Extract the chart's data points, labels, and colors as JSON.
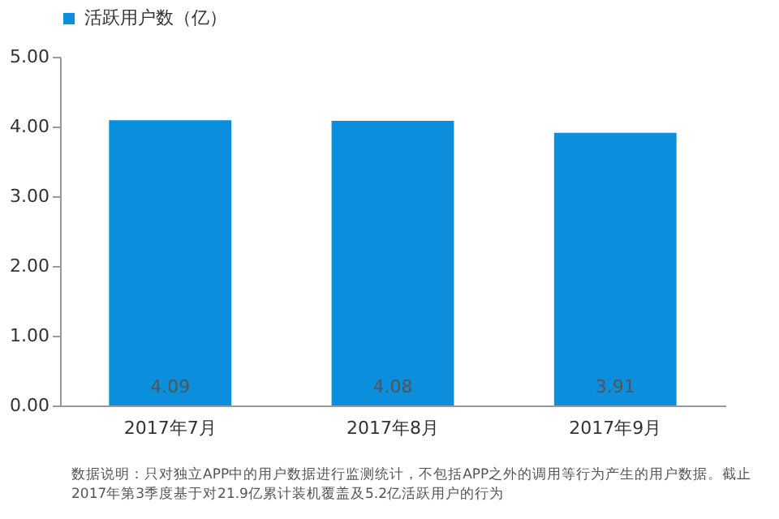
{
  "chart_data": {
    "type": "bar",
    "categories": [
      "2017年7月",
      "2017年8月",
      "2017年9月"
    ],
    "series": [
      {
        "name": "活跃用户数（亿）",
        "color": "#0b8fdc",
        "values": [
          4.09,
          4.08,
          3.91
        ],
        "value_labels": [
          "4.09",
          "4.08",
          "3.91"
        ]
      }
    ],
    "ylim": [
      0,
      5
    ],
    "yticks": [
      {
        "value": 0,
        "label": "0.00"
      },
      {
        "value": 1,
        "label": "1.00"
      },
      {
        "value": 2,
        "label": "2.00"
      },
      {
        "value": 3,
        "label": "3.00"
      },
      {
        "value": 4,
        "label": "4.00"
      },
      {
        "value": 5,
        "label": "5.00"
      }
    ],
    "grid": false,
    "legend": "top",
    "annotations": [
      "数据说明：只对独立APP中的用户数据进行监测统计，不包括APP之外的调用等行为产生的用户数据。截止2017年第3季度基于对21.9亿累计装机覆盖及5.2亿活跃用户的行为"
    ]
  }
}
